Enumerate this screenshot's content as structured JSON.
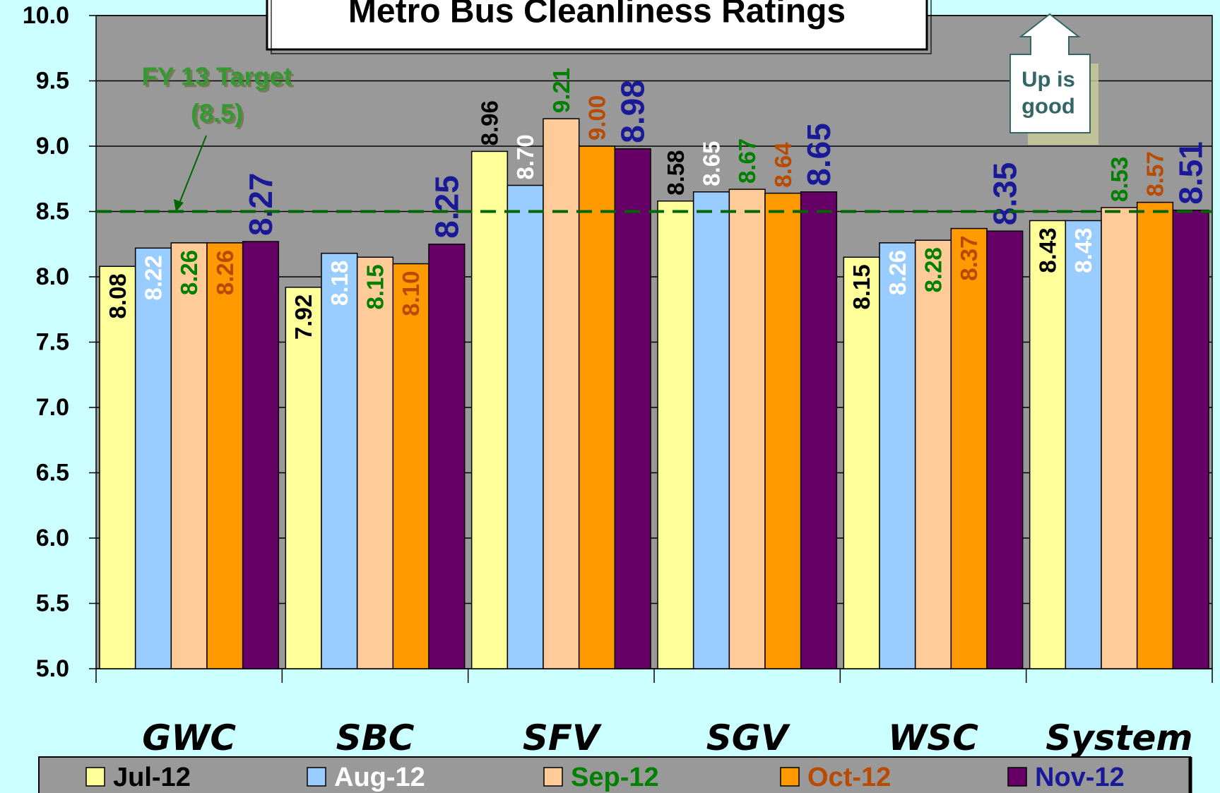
{
  "chart_data": {
    "type": "bar",
    "title": "Metro Bus Cleanliness Ratings",
    "categories": [
      "GWC",
      "SBC",
      "SFV",
      "SGV",
      "WSC",
      "System"
    ],
    "series": [
      {
        "name": "Jul-12",
        "color": "#ffff99",
        "label_color": "#000000",
        "values": [
          8.08,
          7.92,
          8.96,
          8.58,
          8.15,
          8.43
        ],
        "value_labels": [
          "8.08",
          "7.92",
          "8.96",
          "8.58",
          "8.15",
          "8.43"
        ]
      },
      {
        "name": "Aug-12",
        "color": "#99ccff",
        "label_color": "#ffffff",
        "values": [
          8.22,
          8.18,
          8.7,
          8.65,
          8.26,
          8.43
        ],
        "value_labels": [
          "8.22",
          "8.18",
          "8.70",
          "8.65",
          "8.26",
          "8.43"
        ]
      },
      {
        "name": "Sep-12",
        "color": "#ffcc99",
        "label_color": "#008000",
        "values": [
          8.26,
          8.15,
          9.21,
          8.67,
          8.28,
          8.53
        ],
        "value_labels": [
          "8.26",
          "8.15",
          "9.21",
          "8.67",
          "8.28",
          "8.53"
        ]
      },
      {
        "name": "Oct-12",
        "color": "#ff9900",
        "label_color": "#b84a00",
        "values": [
          8.26,
          8.1,
          9.0,
          8.64,
          8.37,
          8.57
        ],
        "value_labels": [
          "8.26",
          "8.10",
          "9.00",
          "8.64",
          "8.37",
          "8.57"
        ]
      },
      {
        "name": "Nov-12",
        "color": "#660066",
        "label_color": "#1a1a99",
        "values": [
          8.27,
          8.25,
          8.98,
          8.65,
          8.35,
          8.51
        ],
        "value_labels": [
          "8.27",
          "8.25",
          "8.98",
          "8.65",
          "8.35",
          "8.51"
        ]
      }
    ],
    "ylim": [
      5,
      10
    ],
    "yticks": [
      {
        "value": 5,
        "label": "5.0"
      },
      5.5,
      {
        "value": 6,
        "label": "6.0"
      },
      6.5,
      {
        "value": 7,
        "label": "7.0"
      },
      7.5,
      {
        "value": 8,
        "label": "8.0"
      },
      8.5,
      {
        "value": 9,
        "label": "9.0"
      },
      9.5,
      {
        "value": 10,
        "label": "10.0"
      }
    ],
    "grid": true,
    "target": {
      "value": 8.5,
      "label_lines": [
        "FY 13 Target",
        "(8.5)"
      ],
      "color": "#006600"
    },
    "note_lines": [
      "Up is",
      "good"
    ],
    "legend": "bottom"
  }
}
